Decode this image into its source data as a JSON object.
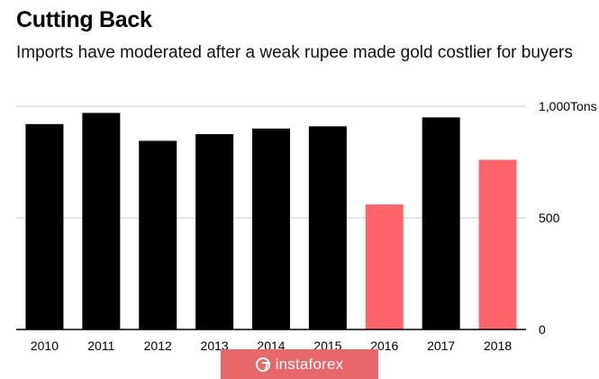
{
  "chart_data": {
    "type": "bar",
    "title": "Cutting Back",
    "subtitle": "Imports have moderated after a weak rupee made gold costlier for buyers",
    "categories": [
      "2010",
      "2011",
      "2012",
      "2013",
      "2014",
      "2015",
      "2016",
      "2017",
      "2018"
    ],
    "values": [
      920,
      970,
      845,
      875,
      900,
      910,
      560,
      950,
      760
    ],
    "highlight": [
      false,
      false,
      false,
      false,
      false,
      false,
      true,
      false,
      true
    ],
    "colors": {
      "default": "#000000",
      "highlight": "#fd6369",
      "grid": "#cccccc",
      "axis": "#000000"
    },
    "ylim": [
      0,
      1000
    ],
    "yticks": [
      {
        "value": 0,
        "label": "0"
      },
      {
        "value": 500,
        "label": "500"
      },
      {
        "value": 1000,
        "label": "1,000Tons"
      }
    ],
    "grid": true
  },
  "watermark": {
    "text": "instaforex",
    "icon": "instaforex-logo-icon",
    "color": "#e8676b"
  }
}
